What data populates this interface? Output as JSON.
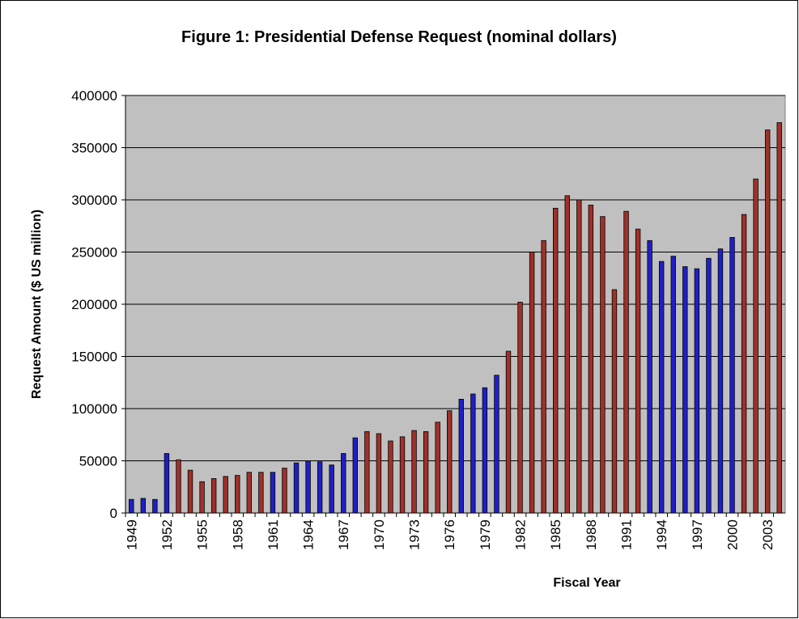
{
  "chart_data": {
    "type": "bar",
    "title": "Figure 1: Presidential Defense Request (nominal dollars)",
    "x_label": "Fiscal Year",
    "y_label": "Request Amount ($ US million)",
    "categories": [
      "1949",
      null,
      null,
      "1952",
      null,
      null,
      "1955",
      null,
      null,
      "1958",
      null,
      null,
      "1961",
      null,
      null,
      "1964",
      null,
      null,
      "1967",
      null,
      null,
      "1970",
      null,
      null,
      "1973",
      null,
      null,
      "1976",
      null,
      null,
      "1979",
      null,
      null,
      "1982",
      null,
      null,
      "1985",
      null,
      null,
      "1988",
      null,
      null,
      "1991",
      null,
      null,
      "1994",
      null,
      null,
      "1997",
      null,
      null,
      "2000",
      null,
      null,
      "2003",
      null
    ],
    "values": [
      13000,
      14000,
      13000,
      57000,
      51000,
      41000,
      30000,
      33000,
      35000,
      36000,
      39000,
      39000,
      39000,
      43000,
      48000,
      50000,
      49000,
      46000,
      57000,
      72000,
      78000,
      76000,
      69000,
      73000,
      79000,
      78000,
      87000,
      98000,
      109000,
      114000,
      120000,
      132000,
      155000,
      202000,
      250000,
      261000,
      292000,
      304000,
      300000,
      295000,
      284000,
      214000,
      289000,
      272000,
      261000,
      241000,
      246000,
      236000,
      234000,
      244000,
      253000,
      264000,
      286000,
      320000,
      367000,
      374000
    ],
    "colors": [
      "#1f1fc8",
      "#1f1fc8",
      "#1f1fc8",
      "#1f1fc8",
      "#a0302a",
      "#a0302a",
      "#a0302a",
      "#a0302a",
      "#a0302a",
      "#a0302a",
      "#a0302a",
      "#a0302a",
      "#1f1fc8",
      "#a0302a",
      "#1f1fc8",
      "#1f1fc8",
      "#1f1fc8",
      "#1f1fc8",
      "#1f1fc8",
      "#1f1fc8",
      "#a0302a",
      "#a0302a",
      "#a0302a",
      "#a0302a",
      "#a0302a",
      "#a0302a",
      "#a0302a",
      "#a0302a",
      "#1f1fc8",
      "#1f1fc8",
      "#1f1fc8",
      "#1f1fc8",
      "#a0302a",
      "#a0302a",
      "#a0302a",
      "#a0302a",
      "#a0302a",
      "#a0302a",
      "#a0302a",
      "#a0302a",
      "#a0302a",
      "#a0302a",
      "#a0302a",
      "#a0302a",
      "#1f1fc8",
      "#1f1fc8",
      "#1f1fc8",
      "#1f1fc8",
      "#1f1fc8",
      "#1f1fc8",
      "#1f1fc8",
      "#1f1fc8",
      "#a0302a",
      "#a0302a",
      "#a0302a",
      "#a0302a"
    ],
    "ylim": [
      0,
      400000
    ],
    "yticks": [
      0,
      50000,
      100000,
      150000,
      200000,
      250000,
      300000,
      350000,
      400000
    ],
    "grid": true
  }
}
